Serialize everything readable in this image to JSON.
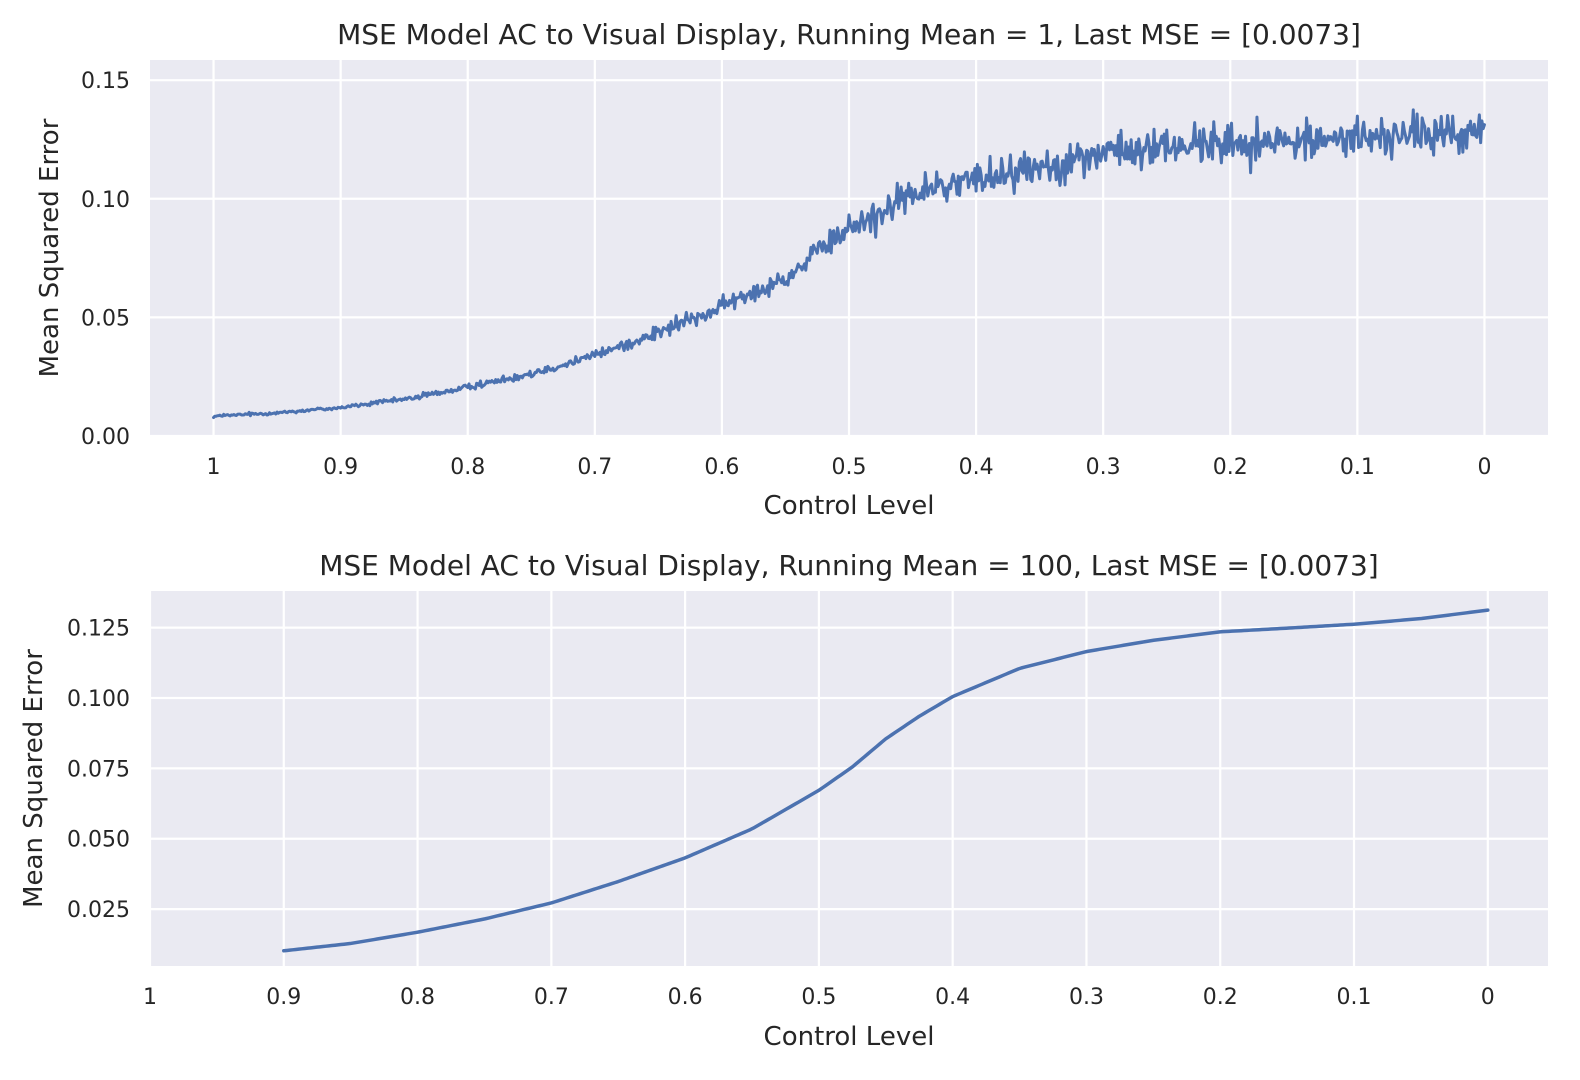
{
  "chart_data": [
    {
      "type": "line",
      "title": "MSE Model AC to Visual Display, Running Mean = 1, Last MSE = [0.0073]",
      "xlabel": "Control Level",
      "ylabel": "Mean Squared Error",
      "xlim": [
        1.05,
        -0.05
      ],
      "ylim": [
        0.0,
        0.1585
      ],
      "x_ticks": [
        1,
        0.9,
        0.8,
        0.7,
        0.6,
        0.5,
        0.4,
        0.3,
        0.2,
        0.1,
        0
      ],
      "x_tick_labels": [
        "1",
        "0.9",
        "0.8",
        "0.7",
        "0.6",
        "0.5",
        "0.4",
        "0.3",
        "0.2",
        "0.1",
        "0"
      ],
      "y_ticks": [
        0.0,
        0.05,
        0.1,
        0.15
      ],
      "y_tick_labels": [
        "0.00",
        "0.05",
        "0.10",
        "0.15"
      ],
      "grid": true,
      "series": [
        {
          "color": "#4c72b0",
          "style": "noisy",
          "noise_relative": 0.1,
          "x": [
            1.0,
            0.95,
            0.9,
            0.85,
            0.8,
            0.75,
            0.7,
            0.65,
            0.6,
            0.55,
            0.5,
            0.45,
            0.4,
            0.35,
            0.3,
            0.25,
            0.2,
            0.15,
            0.1,
            0.05,
            0.0
          ],
          "values": [
            0.0083,
            0.0098,
            0.012,
            0.0155,
            0.0205,
            0.0265,
            0.034,
            0.0435,
            0.0545,
            0.0665,
            0.0875,
            0.102,
            0.1085,
            0.114,
            0.119,
            0.122,
            0.1235,
            0.124,
            0.126,
            0.127,
            0.128
          ]
        }
      ]
    },
    {
      "type": "line",
      "title": "MSE Model AC to Visual Display, Running Mean = 100, Last MSE = [0.0073]",
      "xlabel": "Control Level",
      "ylabel": "Mean Squared Error",
      "xlim": [
        1.0,
        -0.045
      ],
      "ylim": [
        0.0048,
        0.138
      ],
      "x_ticks": [
        1,
        0.9,
        0.8,
        0.7,
        0.6,
        0.5,
        0.4,
        0.3,
        0.2,
        0.1,
        0
      ],
      "x_tick_labels": [
        "1",
        "0.9",
        "0.8",
        "0.7",
        "0.6",
        "0.5",
        "0.4",
        "0.3",
        "0.2",
        "0.1",
        "0"
      ],
      "y_ticks": [
        0.025,
        0.05,
        0.075,
        0.1,
        0.125
      ],
      "y_tick_labels": [
        "0.025",
        "0.050",
        "0.075",
        "0.100",
        "0.125"
      ],
      "grid": true,
      "series": [
        {
          "color": "#4c72b0",
          "style": "smooth",
          "x": [
            0.9,
            0.85,
            0.8,
            0.75,
            0.7,
            0.65,
            0.6,
            0.55,
            0.5,
            0.475,
            0.45,
            0.425,
            0.4,
            0.35,
            0.3,
            0.25,
            0.2,
            0.15,
            0.1,
            0.05,
            0.0
          ],
          "values": [
            0.0102,
            0.0128,
            0.0168,
            0.0215,
            0.0272,
            0.0348,
            0.0432,
            0.0535,
            0.0672,
            0.0755,
            0.0855,
            0.0935,
            0.1005,
            0.1105,
            0.1165,
            0.1205,
            0.1235,
            0.1248,
            0.1262,
            0.1282,
            0.1312
          ]
        }
      ]
    }
  ]
}
